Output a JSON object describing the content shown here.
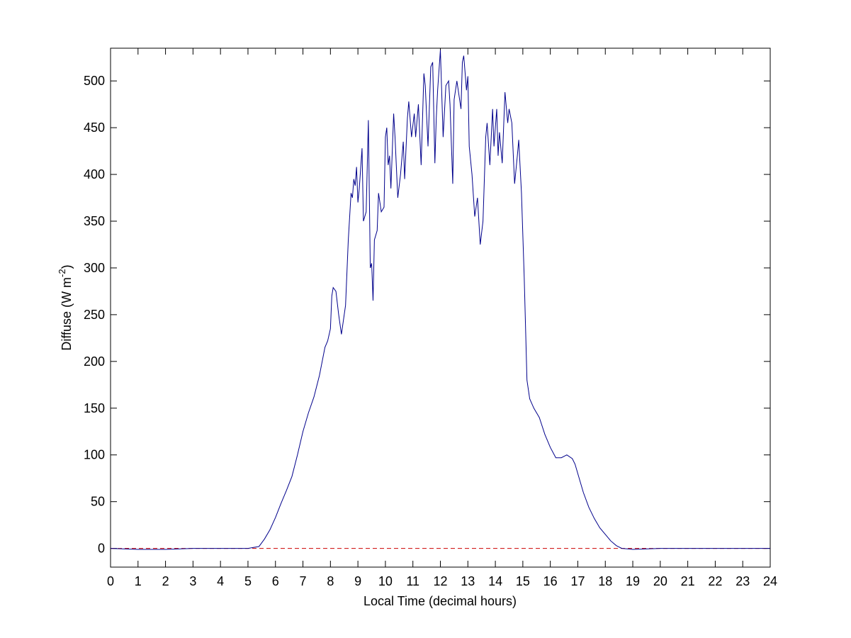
{
  "chart_data": {
    "type": "line",
    "xlabel": "Local Time (decimal hours)",
    "ylabel": [
      "Diffuse (W m",
      "-2",
      ")"
    ],
    "x": [
      0,
      1,
      2,
      3,
      4,
      5,
      5.2,
      5.4,
      5.6,
      5.8,
      6.0,
      6.2,
      6.4,
      6.6,
      6.8,
      7.0,
      7.2,
      7.4,
      7.6,
      7.7,
      7.8,
      7.9,
      8.0,
      8.05,
      8.1,
      8.2,
      8.3,
      8.4,
      8.55,
      8.65,
      8.75,
      8.8,
      8.85,
      8.9,
      8.95,
      9.0,
      9.05,
      9.15,
      9.2,
      9.3,
      9.38,
      9.45,
      9.5,
      9.55,
      9.6,
      9.7,
      9.75,
      9.85,
      9.95,
      10.0,
      10.05,
      10.1,
      10.15,
      10.2,
      10.3,
      10.35,
      10.45,
      10.55,
      10.65,
      10.7,
      10.8,
      10.85,
      10.95,
      11.05,
      11.1,
      11.2,
      11.3,
      11.4,
      11.45,
      11.55,
      11.65,
      11.72,
      11.8,
      11.85,
      11.9,
      12.0,
      12.1,
      12.2,
      12.3,
      12.35,
      12.45,
      12.5,
      12.6,
      12.65,
      12.75,
      12.8,
      12.85,
      12.95,
      13.0,
      13.05,
      13.15,
      13.25,
      13.35,
      13.45,
      13.55,
      13.65,
      13.7,
      13.8,
      13.9,
      13.95,
      14.05,
      14.1,
      14.15,
      14.25,
      14.35,
      14.45,
      14.5,
      14.6,
      14.7,
      14.8,
      14.85,
      14.95,
      15.05,
      15.15,
      15.25,
      15.4,
      15.6,
      15.8,
      16.0,
      16.2,
      16.4,
      16.6,
      16.8,
      16.9,
      17.0,
      17.2,
      17.4,
      17.6,
      17.8,
      18.0,
      18.2,
      18.4,
      18.6,
      19,
      20,
      22,
      24
    ],
    "series": [
      {
        "color": "#00008b",
        "values": [
          0,
          -1,
          -1,
          0,
          0,
          0,
          1,
          2,
          10,
          20,
          33,
          48,
          62,
          77,
          100,
          125,
          145,
          162,
          185,
          200,
          215,
          222,
          235,
          270,
          279,
          275,
          250,
          229,
          260,
          330,
          380,
          375,
          395,
          388,
          408,
          370,
          385,
          428,
          350,
          360,
          458,
          300,
          305,
          265,
          330,
          340,
          380,
          360,
          365,
          440,
          450,
          410,
          420,
          385,
          465,
          440,
          375,
          400,
          435,
          395,
          460,
          478,
          440,
          465,
          440,
          475,
          410,
          508,
          495,
          430,
          515,
          520,
          412,
          460,
          490,
          533,
          440,
          495,
          500,
          475,
          390,
          480,
          500,
          490,
          470,
          520,
          527,
          490,
          505,
          430,
          400,
          355,
          375,
          325,
          350,
          440,
          455,
          410,
          470,
          430,
          470,
          420,
          445,
          412,
          488,
          455,
          470,
          455,
          390,
          420,
          437,
          380,
          290,
          180,
          160,
          150,
          140,
          122,
          108,
          97,
          97,
          100,
          96,
          90,
          80,
          60,
          44,
          32,
          22,
          15,
          8,
          3,
          0,
          -1,
          0,
          0,
          0
        ]
      }
    ],
    "reference_line": {
      "value": 0,
      "color": "#cc0000",
      "style": "dashed"
    },
    "xlim": [
      0,
      24
    ],
    "xticks": [
      0,
      1,
      2,
      3,
      4,
      5,
      6,
      7,
      8,
      9,
      10,
      11,
      12,
      13,
      14,
      15,
      16,
      17,
      18,
      19,
      20,
      21,
      22,
      23,
      24
    ],
    "ylim": [
      -20,
      535
    ],
    "yticks": [
      0,
      50,
      100,
      150,
      200,
      250,
      300,
      350,
      400,
      450,
      500
    ],
    "grid": false
  }
}
